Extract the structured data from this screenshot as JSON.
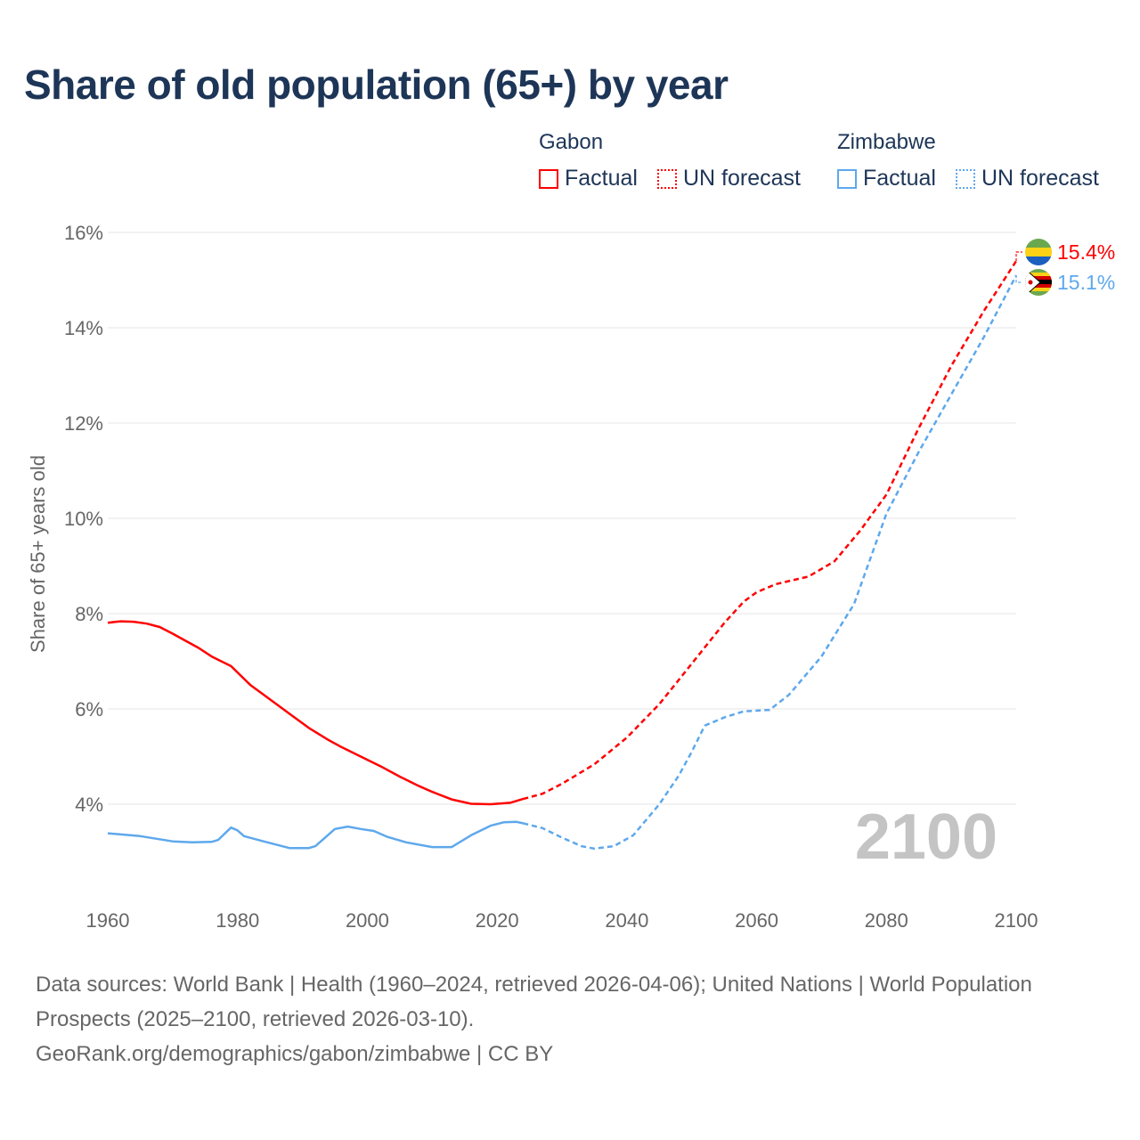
{
  "title": "Share of old population (65+) by year",
  "legend": {
    "groups": [
      {
        "country": "Gabon",
        "factual": "Factual",
        "forecast": "UN forecast",
        "color": "#ff0000"
      },
      {
        "country": "Zimbabwe",
        "factual": "Factual",
        "forecast": "UN forecast",
        "color": "#5ea8ec"
      }
    ]
  },
  "chart_data": {
    "type": "line",
    "title": "Share of old population (65+) by year",
    "xlabel": "",
    "ylabel": "Share of 65+ years old",
    "xlim": [
      1960,
      2100
    ],
    "ylim": [
      2.2,
      16
    ],
    "xticks": [
      "1960",
      "1980",
      "2000",
      "2020",
      "2040",
      "2060",
      "2080",
      "2100"
    ],
    "yticks": [
      "4%",
      "6%",
      "8%",
      "10%",
      "12%",
      "14%",
      "16%"
    ],
    "ytick_values": [
      4,
      6,
      8,
      10,
      12,
      14,
      16
    ],
    "xtick_values": [
      1960,
      1980,
      2000,
      2020,
      2040,
      2060,
      2080,
      2100
    ],
    "current_year": "2100",
    "series": [
      {
        "name": "Gabon",
        "color": "#ff0000",
        "end_label": "15.4%",
        "factual": [
          [
            1960,
            7.81
          ],
          [
            1962,
            7.84
          ],
          [
            1964,
            7.83
          ],
          [
            1966,
            7.79
          ],
          [
            1968,
            7.72
          ],
          [
            1970,
            7.58
          ],
          [
            1972,
            7.43
          ],
          [
            1974,
            7.28
          ],
          [
            1976,
            7.1
          ],
          [
            1979,
            6.9
          ],
          [
            1982,
            6.5
          ],
          [
            1985,
            6.2
          ],
          [
            1988,
            5.9
          ],
          [
            1991,
            5.6
          ],
          [
            1994,
            5.35
          ],
          [
            1996,
            5.2
          ],
          [
            1999,
            5.0
          ],
          [
            2002,
            4.8
          ],
          [
            2005,
            4.58
          ],
          [
            2008,
            4.38
          ],
          [
            2010,
            4.26
          ],
          [
            2013,
            4.1
          ],
          [
            2016,
            4.01
          ],
          [
            2019,
            4.0
          ],
          [
            2022,
            4.03
          ],
          [
            2024,
            4.11
          ]
        ],
        "forecast": [
          [
            2024,
            4.11
          ],
          [
            2027,
            4.22
          ],
          [
            2030,
            4.43
          ],
          [
            2035,
            4.84
          ],
          [
            2040,
            5.4
          ],
          [
            2045,
            6.1
          ],
          [
            2050,
            6.95
          ],
          [
            2055,
            7.8
          ],
          [
            2058,
            8.25
          ],
          [
            2060,
            8.45
          ],
          [
            2063,
            8.62
          ],
          [
            2068,
            8.78
          ],
          [
            2072,
            9.1
          ],
          [
            2076,
            9.75
          ],
          [
            2080,
            10.5
          ],
          [
            2085,
            11.9
          ],
          [
            2090,
            13.2
          ],
          [
            2095,
            14.35
          ],
          [
            2100,
            15.4
          ]
        ]
      },
      {
        "name": "Zimbabwe",
        "color": "#5ea8ec",
        "end_label": "15.1%",
        "factual": [
          [
            1960,
            3.39
          ],
          [
            1965,
            3.33
          ],
          [
            1970,
            3.22
          ],
          [
            1973,
            3.2
          ],
          [
            1976,
            3.21
          ],
          [
            1977,
            3.25
          ],
          [
            1979,
            3.51
          ],
          [
            1980,
            3.45
          ],
          [
            1981,
            3.33
          ],
          [
            1984,
            3.22
          ],
          [
            1988,
            3.08
          ],
          [
            1991,
            3.08
          ],
          [
            1992,
            3.12
          ],
          [
            1995,
            3.48
          ],
          [
            1997,
            3.53
          ],
          [
            1999,
            3.48
          ],
          [
            2001,
            3.44
          ],
          [
            2003,
            3.32
          ],
          [
            2006,
            3.2
          ],
          [
            2010,
            3.1
          ],
          [
            2013,
            3.1
          ],
          [
            2016,
            3.35
          ],
          [
            2019,
            3.55
          ],
          [
            2021,
            3.62
          ],
          [
            2023,
            3.63
          ],
          [
            2024,
            3.6
          ]
        ],
        "forecast": [
          [
            2024,
            3.6
          ],
          [
            2027,
            3.5
          ],
          [
            2030,
            3.3
          ],
          [
            2033,
            3.12
          ],
          [
            2035,
            3.07
          ],
          [
            2038,
            3.12
          ],
          [
            2041,
            3.35
          ],
          [
            2045,
            4.0
          ],
          [
            2048,
            4.6
          ],
          [
            2050,
            5.1
          ],
          [
            2052,
            5.65
          ],
          [
            2055,
            5.82
          ],
          [
            2058,
            5.95
          ],
          [
            2062,
            5.98
          ],
          [
            2065,
            6.3
          ],
          [
            2070,
            7.1
          ],
          [
            2075,
            8.2
          ],
          [
            2080,
            10.1
          ],
          [
            2085,
            11.4
          ],
          [
            2090,
            12.6
          ],
          [
            2095,
            13.8
          ],
          [
            2100,
            15.1
          ]
        ]
      }
    ]
  },
  "footer": {
    "sources": "Data sources: World Bank | Health (1960–2024, retrieved 2026-04-06); United Nations | World Population Prospects (2025–2100, retrieved 2026-03-10).",
    "credit": "GeoRank.org/demographics/gabon/zimbabwe | CC BY"
  }
}
